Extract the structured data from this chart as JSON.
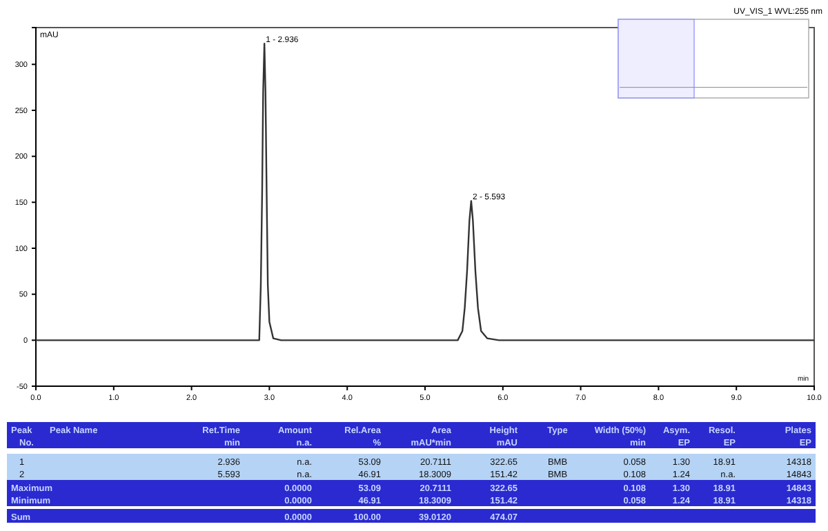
{
  "chart_data": {
    "type": "line",
    "subtitle": "UV_VIS_1 WVL:255 nm",
    "xlabel": "min",
    "ylabel": "mAU",
    "xlim": [
      0,
      10
    ],
    "ylim": [
      -50,
      340
    ],
    "xticks": [
      {
        "value": 0,
        "label": "0.0"
      },
      {
        "value": 1,
        "label": "1.0"
      },
      {
        "value": 2,
        "label": "2.0"
      },
      {
        "value": 3,
        "label": "3.0"
      },
      {
        "value": 4,
        "label": "4.0"
      },
      {
        "value": 5,
        "label": "5.0"
      },
      {
        "value": 6,
        "label": "6.0"
      },
      {
        "value": 7,
        "label": "7.0"
      },
      {
        "value": 8,
        "label": "8.0"
      },
      {
        "value": 9,
        "label": "9.0"
      },
      {
        "value": 10,
        "label": "10.0"
      }
    ],
    "yticks": [
      -50,
      0,
      50,
      100,
      150,
      200,
      250,
      300
    ],
    "grid": false,
    "marker": "none",
    "line_style": "solid",
    "series": [
      {
        "color": "#333333",
        "x": [
          0,
          2.85,
          2.87,
          2.89,
          2.907,
          2.92,
          2.936,
          2.95,
          2.965,
          2.98,
          3.0,
          3.05,
          3.15,
          5.42,
          5.48,
          5.51,
          5.54,
          5.57,
          5.593,
          5.615,
          5.647,
          5.68,
          5.72,
          5.8,
          5.95,
          10
        ],
        "values": [
          0,
          0,
          0,
          60,
          160,
          270,
          322.65,
          270,
          160,
          60,
          20,
          2,
          0,
          0,
          10,
          35,
          75,
          130,
          151.42,
          130,
          75,
          35,
          10,
          2,
          0,
          0
        ]
      }
    ],
    "annotations": [
      {
        "text": "1 - 2.936",
        "x": 2.936,
        "y": 322.65
      },
      {
        "text": "2 - 5.593",
        "x": 5.593,
        "y": 151.42
      },
      "Peak\tPeak Name\tRet.Time\tAmount\tRel.Area\tArea\tHeight\tType\tWidth (50%)\tAsym.\tResol.\tPlates",
      "No.\t\tmin\tn.a.\t%\tmAU*min\tmAU\t\tmin\tEP\tEP\tEP",
      "1\t\t2.936\tn.a.\t53.09\t20.7111\t322.65\tBMB\t0.058\t1.30\t18.91\t14318",
      "2\t\t5.593\tn.a.\t46.91\t18.3009\t151.42\tBMB\t0.108\t1.24\tn.a.\t14843",
      "Maximum\t\t\t0.0000\t53.09\t20.7111\t322.65\t\t0.108\t1.30\t18.91\t14843",
      "Minimum\t\t\t0.0000\t46.91\t18.3009\t151.42\t\t0.058\t1.24\t18.91\t14318",
      "Sum\t\t\t0.0000\t100.00\t39.0120\t474.07\t\t\t\t\t"
    ]
  }
}
